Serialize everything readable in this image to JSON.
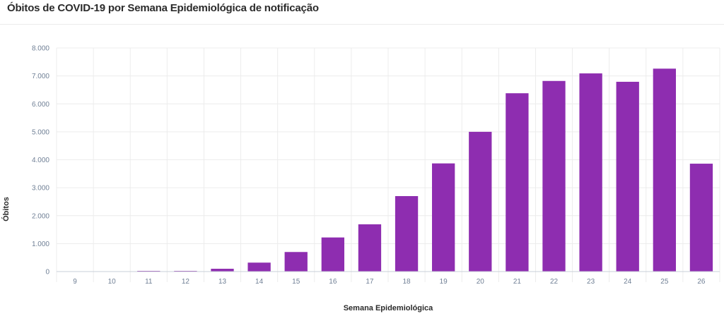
{
  "title": "Óbitos de COVID-19 por Semana Epidemiológica de notificação",
  "chart_data": {
    "type": "bar",
    "title": "Óbitos de COVID-19 por Semana Epidemiológica de notificação",
    "xlabel": "Semana Epidemiológica",
    "ylabel": "Óbitos",
    "categories": [
      "9",
      "10",
      "11",
      "12",
      "13",
      "14",
      "15",
      "16",
      "17",
      "18",
      "19",
      "20",
      "21",
      "22",
      "23",
      "24",
      "25",
      "26"
    ],
    "values": [
      0,
      0,
      5,
      20,
      100,
      320,
      700,
      1220,
      1690,
      2700,
      3870,
      5000,
      6380,
      6820,
      7090,
      6790,
      7260,
      3860
    ],
    "ylim": [
      0,
      8000
    ],
    "yticks": [
      0,
      1000,
      2000,
      3000,
      4000,
      5000,
      6000,
      7000,
      8000
    ],
    "ytick_labels": [
      "0",
      "1.000",
      "2.000",
      "3.000",
      "4.000",
      "5.000",
      "6.000",
      "7.000",
      "8.000"
    ],
    "grid": true,
    "bar_color": "#8e2db0",
    "grid_color": "#ececec",
    "tick_color": "#6f7f95"
  }
}
